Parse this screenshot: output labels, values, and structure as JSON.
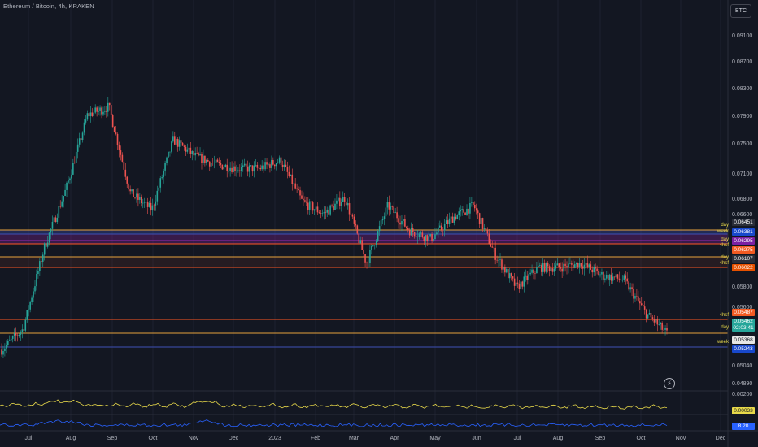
{
  "header": {
    "title": "Ethereum / Bitcoin, 4h, KRAKEN",
    "currency_button": "BTC"
  },
  "price_axis": {
    "ticks": [
      "0.09100",
      "0.08700",
      "0.08300",
      "0.07900",
      "0.07500",
      "0.07100",
      "0.06800",
      "0.06600",
      "0.05800",
      "0.05600",
      "0.05040",
      "0.04890"
    ]
  },
  "time_axis": {
    "ticks": [
      "Jul",
      "Aug",
      "Sep",
      "Oct",
      "Nov",
      "Dec",
      "2023",
      "Feb",
      "Mar",
      "Apr",
      "May",
      "Jun",
      "Jul",
      "Aug",
      "Sep",
      "Oct",
      "Nov",
      "Dec"
    ]
  },
  "levels": [
    {
      "label": "day",
      "value": "0.06451",
      "color": "#e6a23c",
      "badge_bg": "#2a2e39",
      "badge_fg": "#ffffff"
    },
    {
      "label": "week",
      "value": "0.06381",
      "color": "#3f51b5",
      "badge_bg": "#1848cc",
      "badge_fg": "#ffffff"
    },
    {
      "label": "day",
      "value": "0.06295",
      "color": "#9c27b0",
      "badge_bg": "#7b1fa2",
      "badge_fg": "#ffffff"
    },
    {
      "label": "4hsf",
      "value": "0.06275",
      "color": "#ff5722",
      "badge_bg": "#f25a22",
      "badge_fg": "#ffffff"
    },
    {
      "label": "day",
      "value": "0.06107",
      "color": "#e6a23c",
      "badge_bg": "#2a2e39",
      "badge_fg": "#ffffff"
    },
    {
      "label": "4hsf",
      "value": "0.06022",
      "color": "#ff5722",
      "badge_bg": "#e65100",
      "badge_fg": "#ffffff"
    },
    {
      "label": "4hsf",
      "value": "0.05487",
      "color": "#ff5722",
      "badge_bg": "#f25a22",
      "badge_fg": "#ffffff"
    },
    {
      "label": "day",
      "value": "0.05368",
      "color": "#e6a23c",
      "badge_bg": "#e6e6e6",
      "badge_fg": "#131722"
    },
    {
      "label": "week",
      "value": "0.05243",
      "color": "#3f51b5",
      "badge_bg": "#1848cc",
      "badge_fg": "#ffffff"
    }
  ],
  "current_price": {
    "value": "0.05462",
    "countdown": "02:03:41",
    "bg": "#26a69a"
  },
  "indicator1": {
    "tick": "0.00200",
    "value": "0.00033",
    "color": "#e8d94a"
  },
  "indicator2": {
    "value": "8.20",
    "color": "#2962ff"
  },
  "colors": {
    "up": "#26a69a",
    "down": "#ef5350",
    "background": "#131722"
  },
  "chart_data": {
    "type": "candlestick",
    "title": "Ethereum / Bitcoin, 4h, KRAKEN",
    "x": [
      "Jul",
      "Jul",
      "Aug",
      "Aug",
      "Sep",
      "Sep",
      "Oct",
      "Oct",
      "Nov",
      "Nov",
      "Dec",
      "Dec",
      "2023",
      "2023",
      "Feb",
      "Feb",
      "Mar",
      "Mar",
      "Apr",
      "Apr",
      "May",
      "May",
      "Jun",
      "Jun",
      "Jul",
      "Jul",
      "Aug",
      "Aug",
      "Sep",
      "Sep",
      "Oct",
      "Oct"
    ],
    "close": [
      0.0525,
      0.055,
      0.065,
      0.072,
      0.081,
      0.082,
      0.0715,
      0.0695,
      0.078,
      0.076,
      0.075,
      0.0745,
      0.0745,
      0.0755,
      0.0705,
      0.069,
      0.071,
      0.063,
      0.07,
      0.067,
      0.066,
      0.0685,
      0.07,
      0.064,
      0.06,
      0.0625,
      0.0625,
      0.063,
      0.0615,
      0.061,
      0.057,
      0.0545
    ],
    "ylim": [
      0.0478,
      0.0922
    ]
  }
}
